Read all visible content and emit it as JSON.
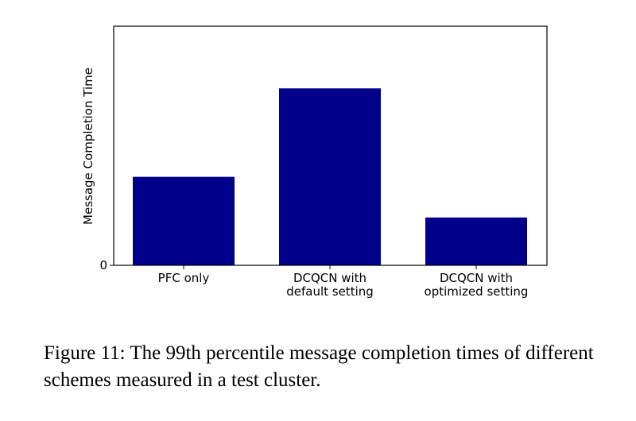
{
  "chart_data": {
    "type": "bar",
    "categories": [
      [
        "PFC only"
      ],
      [
        "DCQCN with",
        "default setting"
      ],
      [
        "DCQCN with",
        "optimized setting"
      ]
    ],
    "values": [
      0.37,
      0.74,
      0.2
    ],
    "ylabel": "Message Completion Time",
    "ylim": [
      0,
      1
    ],
    "yticks": [
      {
        "value": 0,
        "label": "0"
      }
    ],
    "bar_color": "#00008b",
    "grid": false
  },
  "caption": "Figure 11: The 99th percentile message completion times of different schemes measured in a test cluster."
}
